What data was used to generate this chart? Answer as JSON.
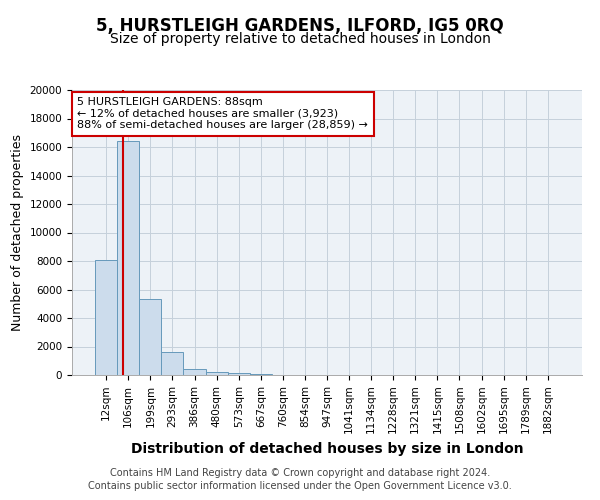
{
  "title": "5, HURSTLEIGH GARDENS, ILFORD, IG5 0RQ",
  "subtitle": "Size of property relative to detached houses in London",
  "xlabel": "Distribution of detached houses by size in London",
  "ylabel": "Number of detached properties",
  "categories": [
    "12sqm",
    "106sqm",
    "199sqm",
    "293sqm",
    "386sqm",
    "480sqm",
    "573sqm",
    "667sqm",
    "760sqm",
    "854sqm",
    "947sqm",
    "1041sqm",
    "1134sqm",
    "1228sqm",
    "1321sqm",
    "1415sqm",
    "1508sqm",
    "1602sqm",
    "1695sqm",
    "1789sqm",
    "1882sqm"
  ],
  "values": [
    8100,
    16400,
    5300,
    1600,
    400,
    220,
    120,
    60,
    30,
    10,
    5,
    3,
    2,
    1,
    1,
    1,
    0,
    0,
    0,
    0,
    0
  ],
  "bar_color": "#ccdcec",
  "bar_edge_color": "#6699bb",
  "property_line_x": 0.75,
  "annotation_line1": "5 HURSTLEIGH GARDENS: 88sqm",
  "annotation_line2": "← 12% of detached houses are smaller (3,923)",
  "annotation_line3": "88% of semi-detached houses are larger (28,859) →",
  "annotation_box_color": "#cc0000",
  "ylim": [
    0,
    20000
  ],
  "yticks": [
    0,
    2000,
    4000,
    6000,
    8000,
    10000,
    12000,
    14000,
    16000,
    18000,
    20000
  ],
  "footer1": "Contains HM Land Registry data © Crown copyright and database right 2024.",
  "footer2": "Contains public sector information licensed under the Open Government Licence v3.0.",
  "bg_color": "#edf2f7",
  "grid_color": "#c5d0db",
  "title_fontsize": 12,
  "subtitle_fontsize": 10,
  "tick_fontsize": 7.5,
  "ylabel_fontsize": 9,
  "xlabel_fontsize": 10,
  "footer_fontsize": 7
}
